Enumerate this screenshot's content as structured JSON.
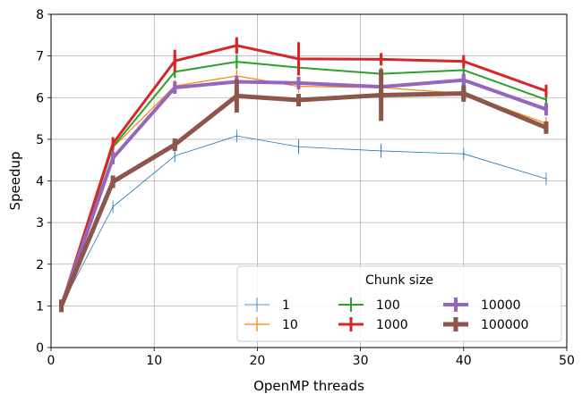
{
  "chart_data": {
    "type": "line",
    "xlabel": "OpenMP threads",
    "ylabel": "Speedup",
    "xlim": [
      0,
      50
    ],
    "ylim": [
      0,
      8
    ],
    "xticks": [
      0,
      10,
      20,
      30,
      40,
      50
    ],
    "yticks": [
      0,
      1,
      2,
      3,
      4,
      5,
      6,
      7,
      8
    ],
    "grid": true,
    "legend": {
      "title": "Chunk size",
      "placement": "lower-right",
      "columns": 3
    },
    "x": [
      1,
      6,
      12,
      18,
      24,
      32,
      40,
      48
    ],
    "series": [
      {
        "name": "1",
        "color": "#1f77b4",
        "width": 0.8,
        "values": [
          1.0,
          3.38,
          4.6,
          5.08,
          4.82,
          4.72,
          4.65,
          4.05
        ],
        "errors": [
          0.02,
          0.05,
          0.12,
          0.05,
          0.18,
          0.17,
          0.05,
          0.04
        ]
      },
      {
        "name": "10",
        "color": "#ff7f0e",
        "width": 1.2,
        "values": [
          1.0,
          4.8,
          6.28,
          6.52,
          6.27,
          6.24,
          6.1,
          5.38
        ],
        "errors": [
          0.02,
          0.05,
          0.07,
          0.09,
          0.04,
          0.09,
          0.05,
          0.05
        ]
      },
      {
        "name": "100",
        "color": "#2ca02c",
        "width": 2.0,
        "values": [
          1.0,
          4.82,
          6.62,
          6.86,
          6.72,
          6.57,
          6.66,
          5.95
        ],
        "errors": [
          0.02,
          0.05,
          0.12,
          0.17,
          0.05,
          0.08,
          0.09,
          0.06
        ]
      },
      {
        "name": "1000",
        "color": "#d62728",
        "width": 3.0,
        "values": [
          1.0,
          4.9,
          6.88,
          7.25,
          6.93,
          6.92,
          6.87,
          6.16
        ],
        "errors": [
          0.02,
          0.05,
          0.27,
          0.2,
          0.4,
          0.11,
          0.09,
          0.08
        ]
      },
      {
        "name": "10000",
        "color": "#9467bd",
        "width": 4.0,
        "values": [
          1.0,
          4.55,
          6.24,
          6.38,
          6.35,
          6.26,
          6.42,
          5.72
        ],
        "errors": [
          0.02,
          0.05,
          0.1,
          0.1,
          0.1,
          0.1,
          0.12,
          0.1
        ]
      },
      {
        "name": "100000",
        "color": "#8c564b",
        "width": 5.0,
        "values": [
          1.0,
          3.98,
          4.87,
          6.04,
          5.94,
          6.06,
          6.1,
          5.28
        ],
        "errors": [
          0.02,
          0.08,
          0.08,
          0.4,
          0.1,
          0.62,
          0.2,
          0.1
        ]
      }
    ]
  }
}
